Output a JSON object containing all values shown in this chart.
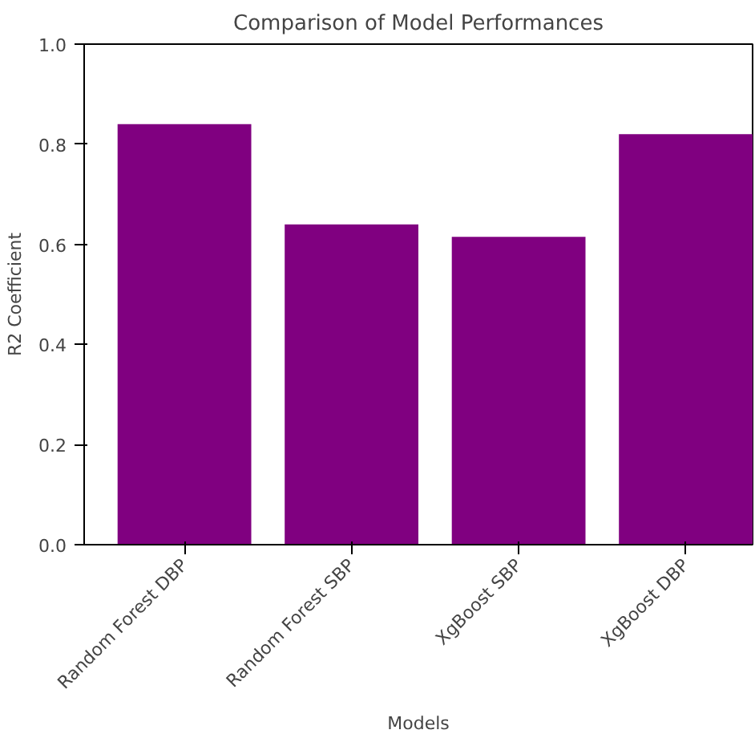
{
  "chart_data": {
    "type": "bar",
    "title": "Comparison of Model Performances",
    "xlabel": "Models",
    "ylabel": "R2 Coefficient",
    "categories": [
      "Random Forest DBP",
      "Random Forest SBP",
      "XgBoost SBP",
      "XgBoost DBP"
    ],
    "values": [
      0.84,
      0.64,
      0.615,
      0.82
    ],
    "color": "#800080",
    "ylim": [
      0,
      1
    ],
    "yticks": [
      {
        "value": 0,
        "label": "0.0"
      },
      {
        "value": 0.2,
        "label": "0.2"
      },
      {
        "value": 0.4,
        "label": "0.4"
      },
      {
        "value": 0.6,
        "label": "0.6"
      },
      {
        "value": 0.8,
        "label": "0.8"
      },
      {
        "value": 1,
        "label": "1.0"
      }
    ],
    "grid": false
  }
}
